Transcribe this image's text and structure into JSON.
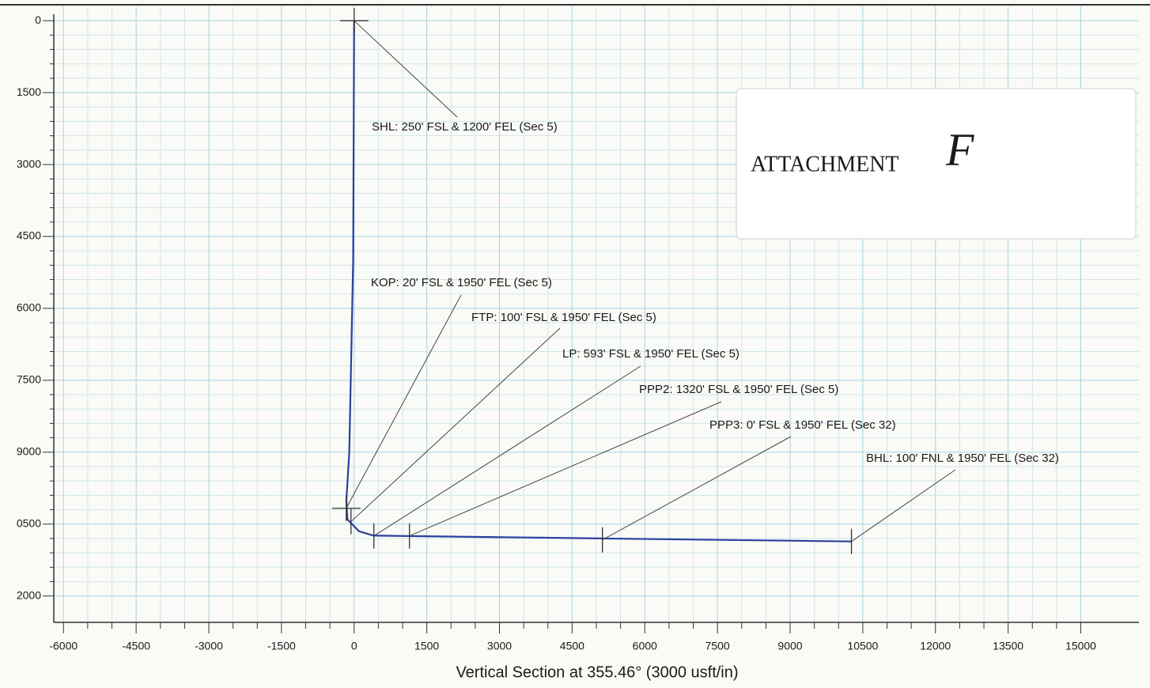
{
  "chart_data": {
    "type": "line",
    "xlabel": "Vertical Section at 355.46° (3000 usft/in)",
    "x": [
      0,
      -20,
      -100,
      -160,
      -140,
      100,
      400,
      1150,
      5125,
      10266
    ],
    "series": [
      {
        "color": "#2b3f9e",
        "values": [
          0,
          5000,
          9000,
          10000,
          10400,
          10650,
          10740,
          10750,
          10800,
          10862
        ]
      }
    ],
    "xlim": [
      -6200,
      16200
    ],
    "xticks": [
      -6000,
      -4500,
      -3000,
      -1500,
      0,
      1500,
      3000,
      4500,
      6000,
      7500,
      9000,
      10500,
      12000,
      13500,
      15000
    ],
    "ylim": [
      -300,
      12550
    ],
    "y_inverted": true,
    "yticks": [
      0,
      1500,
      3000,
      4500,
      6000,
      7500,
      9000,
      {
        "value": 10500,
        "label": "0500"
      },
      {
        "value": 12000,
        "label": "2000"
      }
    ],
    "grid": true,
    "annotations": [
      {
        "text": "SHL: 250' FSL & 1200' FEL (Sec 5)",
        "x": 0,
        "y": 0
      },
      {
        "text": "KOP: 20' FSL & 1950' FEL (Sec 5)",
        "x": -163,
        "y": 10170
      },
      {
        "text": "FTP: 100' FSL & 1950' FEL  (Sec 5)",
        "x": -65,
        "y": 10450
      },
      {
        "text": "LP: 593' FSL & 1950' FEL (Sec 5)",
        "x": 408,
        "y": 10747
      },
      {
        "text": "PPP2: 1320' FSL & 1950' FEL (Sec 5)",
        "x": 1142,
        "y": 10747
      },
      {
        "text": "PPP3: 0' FSL & 1950' FEL  (Sec 32)",
        "x": 5125,
        "y": 10829
      },
      {
        "text": "BHL: 100' FNL & 1950' FEL  (Sec 32)",
        "x": 10266,
        "y": 10862
      }
    ],
    "stamp": {
      "text": "ATTACHMENT",
      "mark": "F"
    }
  }
}
